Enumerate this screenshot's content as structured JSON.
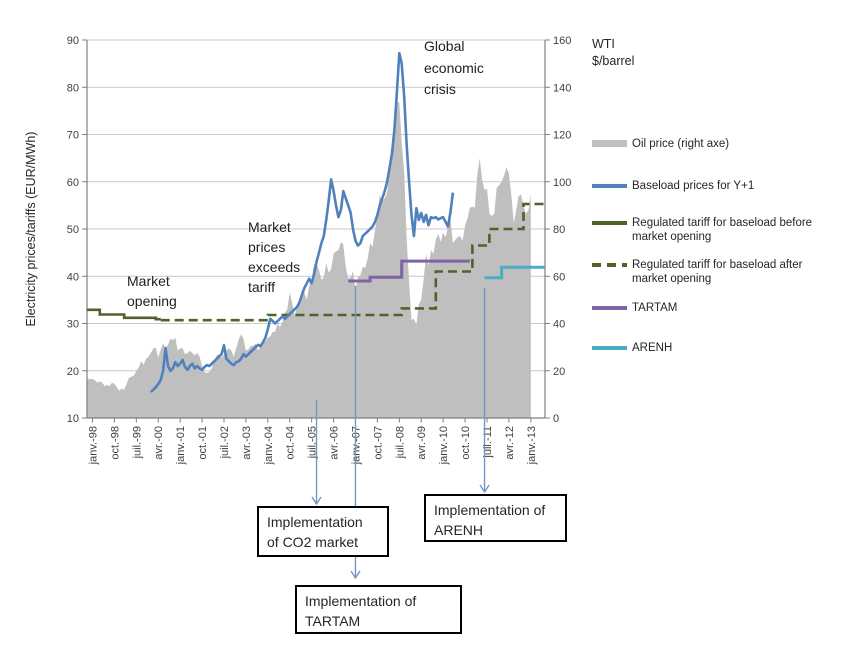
{
  "chart_data": {
    "type": "combo (area + line + step-line), dual axis",
    "x_axis": {
      "note": "monthly categories, months indexed from Jan-1998 (m=0) to Jan-2013 (m=180)",
      "tick_labels": [
        "janv.-98",
        "oct.-98",
        "juil.-99",
        "avr.-00",
        "janv.-01",
        "oct.-01",
        "juil.-02",
        "avr.-03",
        "janv.-04",
        "oct.-04",
        "juil.-05",
        "avr.-06",
        "janv.-07",
        "oct.-07",
        "juil.-08",
        "avr.-09",
        "janv.-10",
        "oct.-10",
        "juil.-11",
        "avr.-12",
        "janv.-13"
      ],
      "tick_interval_months": 9
    },
    "left_axis": {
      "title": "Electricity prices/tariffs (EUR/MWh)",
      "min": 10,
      "max": 90,
      "step": 10
    },
    "right_axis": {
      "title_lines": [
        "WTI",
        "$/barrel"
      ],
      "min": 0,
      "max": 160,
      "step": 20
    },
    "grid": "horizontal only",
    "colors": {
      "oil_area": "#BFBFBF",
      "baseload": "#4F81BD",
      "tariff_olive": "#4F6228",
      "tartam": "#8064A2",
      "arenh": "#4BACC6",
      "callout_arrow": "#7396C5",
      "axis_line": "#7F7F7F",
      "gridline": "#C9C9C9",
      "tick_text": "#3F3F3F"
    },
    "series": [
      {
        "name": "Oil price (right axe)",
        "type": "area",
        "axis": "right",
        "color": "#BFBFBF",
        "start_month": 0,
        "values": [
          16.5,
          16,
          15,
          15.5,
          15,
          13.5,
          14,
          13.5,
          15,
          14.5,
          13,
          11.5,
          12.5,
          12,
          14.5,
          17,
          17.5,
          18,
          20,
          21.5,
          24,
          22.5,
          25,
          26,
          27.5,
          29.5,
          29.8,
          25.5,
          29,
          31.5,
          29.5,
          31,
          33.5,
          33,
          34,
          28.5,
          29.5,
          29.5,
          27,
          27.5,
          28.5,
          27.5,
          26.5,
          27.5,
          26,
          22,
          19.5,
          19,
          19.5,
          21,
          24.5,
          26.5,
          27,
          25.5,
          27,
          28.5,
          29.5,
          28.5,
          26,
          29.5,
          33,
          35.5,
          33.5,
          28.5,
          29,
          30.5,
          30.5,
          31.5,
          28.5,
          30.5,
          31,
          32.5,
          34,
          34.5,
          36.5,
          36.5,
          40,
          38.5,
          40.5,
          44.5,
          46,
          53,
          48.5,
          43.5,
          46.5,
          48,
          54,
          53,
          50,
          56,
          58.5,
          65,
          65.5,
          62.5,
          58.5,
          59.5,
          65.5,
          61.5,
          63,
          69.5,
          70.5,
          71,
          74.5,
          73.5,
          64,
          59,
          59.5,
          62,
          54.5,
          59.5,
          60.5,
          64,
          63.5,
          67.5,
          74,
          72.5,
          79.5,
          86,
          94.5,
          91.5,
          93,
          95.5,
          105.5,
          112.5,
          125.5,
          134,
          133.5,
          116.5,
          104,
          76.5,
          57.5,
          41.5,
          42,
          39.5,
          48,
          50,
          59,
          69.5,
          64.5,
          71,
          69.5,
          75.5,
          78,
          74.5,
          78.5,
          76.5,
          81,
          84.5,
          74,
          75.5,
          76.5,
          77,
          75,
          81.5,
          84.5,
          89,
          89.5,
          89,
          102.5,
          110,
          101,
          96.5,
          97,
          86.5,
          85.5,
          86.5,
          97.5,
          98.5,
          100,
          102.5,
          106,
          103.5,
          94.5,
          82.5,
          88,
          94,
          94.5,
          89.5,
          86.5,
          88,
          94.5
        ]
      },
      {
        "name": "Baseload prices for Y+1",
        "type": "line",
        "axis": "left",
        "color": "#4F81BD",
        "start_month": 24,
        "values": [
          15.5,
          16,
          16.5,
          17.2,
          18,
          20,
          24.8,
          21,
          20,
          20.5,
          21.8,
          21,
          21.5,
          22.3,
          20.8,
          20.2,
          21,
          21.5,
          20.5,
          21,
          20.5,
          20.2,
          20.8,
          21.2,
          21,
          21.5,
          22,
          22.5,
          23,
          23.5,
          25.4,
          22.5,
          22,
          21.5,
          21.2,
          21.8,
          22,
          22.5,
          23.5,
          23,
          23.5,
          24,
          24.5,
          25,
          25.5,
          25.2,
          26,
          27,
          28.8,
          31,
          30.5,
          30,
          30.5,
          31,
          31.5,
          31,
          31.5,
          32,
          32.5,
          33,
          33.5,
          34.5,
          36,
          37.5,
          38.5,
          39.5,
          38.5,
          40.5,
          43,
          45,
          47,
          48.5,
          52,
          56,
          60.5,
          58,
          55,
          52.5,
          54,
          58,
          56.5,
          55,
          53.5,
          50,
          47.5,
          46.5,
          47,
          48.5,
          49,
          49.5,
          50,
          50.5,
          51.5,
          53,
          55,
          56.5,
          58,
          60,
          63,
          66,
          71,
          79,
          87.2,
          85,
          78,
          68,
          60,
          53,
          48.5,
          54.4,
          51.9,
          53.4,
          51.5,
          53,
          50.8,
          52.5,
          52.3,
          52.5,
          52,
          52.3,
          52.5,
          51.5,
          50.5,
          53.5,
          57.7
        ]
      },
      {
        "name": "Regulated tariff for baseload before market opening",
        "type": "step",
        "axis": "left",
        "color": "#4F6228",
        "dash": "solid",
        "starts_at_plot_edge": true,
        "points": [
          {
            "m": 0,
            "v": 32.9
          },
          {
            "m": 3,
            "v": 31.9
          },
          {
            "m": 13,
            "v": 31.2
          },
          {
            "m": 26,
            "v": 30.9
          }
        ],
        "end_month": 28
      },
      {
        "name": "Regulated tariff for baseload after market opening",
        "type": "step",
        "axis": "left",
        "color": "#4F6228",
        "dash": "dashed",
        "points": [
          {
            "m": 28,
            "v": 30.7
          },
          {
            "m": 72,
            "v": 31.8
          },
          {
            "m": 127,
            "v": 33.2
          },
          {
            "m": 141,
            "v": 41
          },
          {
            "m": 156,
            "v": 46.5
          },
          {
            "m": 163,
            "v": 50
          },
          {
            "m": 177,
            "v": 55.3
          }
        ],
        "end_month": 186
      },
      {
        "name": "TARTAM",
        "type": "step",
        "axis": "left",
        "color": "#8064A2",
        "dash": "solid",
        "points": [
          {
            "m": 105,
            "v": 39
          },
          {
            "m": 114,
            "v": 39.8
          },
          {
            "m": 127,
            "v": 43.2
          }
        ],
        "end_month": 155
      },
      {
        "name": "ARENH",
        "type": "step",
        "axis": "left",
        "color": "#4BACC6",
        "dash": "solid",
        "points": [
          {
            "m": 161,
            "v": 39.7
          },
          {
            "m": 168,
            "v": 41.9
          }
        ],
        "end_month": 186
      }
    ],
    "annotations": {
      "market_opening": {
        "lines": [
          "Market",
          "opening"
        ]
      },
      "market_exceeds": {
        "lines": [
          "Market",
          "prices",
          "exceeds",
          "tariff"
        ]
      },
      "global_crisis": {
        "lines": [
          "Global",
          "economic",
          "crisis"
        ]
      }
    },
    "events": [
      {
        "id": "co2",
        "month": 92,
        "label_lines": [
          "Implementation",
          "of CO2 market"
        ]
      },
      {
        "id": "tartam",
        "month": 108,
        "label_lines": [
          "Implementation of",
          "TARTAM"
        ]
      },
      {
        "id": "arenh",
        "month": 161,
        "label_lines": [
          "Implementation of",
          "ARENH"
        ]
      }
    ],
    "legend": {
      "position": "right",
      "items": [
        {
          "id": "oil-price",
          "label_lines": [
            "Oil price (right axe)"
          ],
          "swatch": "area",
          "color": "#BFBFBF"
        },
        {
          "id": "baseload-y1",
          "label_lines": [
            "Baseload prices for Y+1"
          ],
          "swatch": "line",
          "color": "#4F81BD"
        },
        {
          "id": "tariff-before",
          "label_lines": [
            "Regulated tariff for baseload before",
            "market opening"
          ],
          "swatch": "line",
          "color": "#4F6228"
        },
        {
          "id": "tariff-after",
          "label_lines": [
            "Regulated tariff for baseload after",
            "market opening"
          ],
          "swatch": "dashed-line",
          "color": "#4F6228"
        },
        {
          "id": "tartam",
          "label_lines": [
            "TARTAM"
          ],
          "swatch": "line",
          "color": "#8064A2"
        },
        {
          "id": "arenh",
          "label_lines": [
            "ARENH"
          ],
          "swatch": "line",
          "color": "#4BACC6"
        }
      ]
    }
  }
}
